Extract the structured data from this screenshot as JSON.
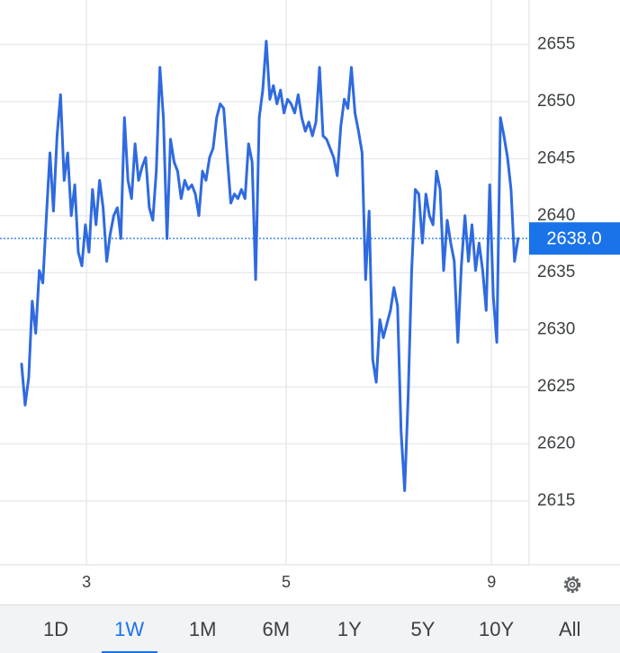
{
  "chart_data": {
    "type": "line",
    "series": [
      {
        "color": "#2f6ae0",
        "values": [
          2627.0,
          2623.4,
          2625.8,
          2632.5,
          2629.7,
          2635.2,
          2634.1,
          2640.0,
          2645.5,
          2640.4,
          2647.0,
          2650.6,
          2643.1,
          2645.5,
          2640.0,
          2642.7,
          2636.8,
          2635.6,
          2639.2,
          2636.8,
          2642.3,
          2639.2,
          2643.1,
          2640.7,
          2636.0,
          2638.4,
          2640.0,
          2640.7,
          2638.0,
          2648.6,
          2643.1,
          2641.5,
          2646.3,
          2643.1,
          2644.3,
          2645.1,
          2640.7,
          2639.6,
          2643.9,
          2653.0,
          2648.6,
          2638.0,
          2646.7,
          2644.7,
          2643.9,
          2641.5,
          2643.1,
          2642.3,
          2642.7,
          2641.9,
          2640.0,
          2643.9,
          2643.1,
          2645.1,
          2645.9,
          2648.6,
          2649.8,
          2649.4,
          2645.1,
          2641.1,
          2641.9,
          2641.5,
          2642.3,
          2641.5,
          2646.3,
          2644.7,
          2634.4,
          2648.6,
          2651.0,
          2655.3,
          2650.2,
          2651.4,
          2649.8,
          2651.0,
          2649.0,
          2650.2,
          2649.8,
          2649.0,
          2650.6,
          2648.6,
          2647.4,
          2648.2,
          2647.0,
          2648.2,
          2653.0,
          2647.0,
          2646.7,
          2645.9,
          2645.1,
          2643.5,
          2647.8,
          2650.2,
          2649.4,
          2653.0,
          2649.0,
          2647.4,
          2645.5,
          2634.4,
          2640.4,
          2627.4,
          2625.4,
          2630.9,
          2629.3,
          2630.5,
          2631.7,
          2633.7,
          2632.1,
          2621.1,
          2615.9,
          2624.2,
          2635.2,
          2642.3,
          2641.9,
          2637.6,
          2641.9,
          2640.0,
          2639.2,
          2643.9,
          2642.3,
          2635.2,
          2639.6,
          2637.6,
          2636.0,
          2628.9,
          2635.6,
          2640.0,
          2636.0,
          2639.2,
          2635.2,
          2637.6,
          2635.2,
          2631.7,
          2642.7,
          2632.9,
          2628.9,
          2648.6,
          2647.0,
          2645.1,
          2642.3,
          2636.0,
          2638.0
        ]
      }
    ],
    "xlim": [
      -0.5,
      143.1
    ],
    "xticks": [
      {
        "value": 18.3,
        "label": "3"
      },
      {
        "value": 74.6,
        "label": "5"
      },
      {
        "value": 132.5,
        "label": "9"
      }
    ],
    "ylim": [
      2609.4,
      2658.9
    ],
    "yticks": [
      2615,
      2620,
      2625,
      2630,
      2635,
      2640,
      2645,
      2650,
      2655
    ],
    "grid": true,
    "current_price": {
      "value": 2638.0,
      "label": "2638.0"
    }
  },
  "range_buttons": {
    "labels": [
      "1D",
      "1W",
      "1M",
      "6M",
      "1Y",
      "5Y",
      "10Y",
      "All"
    ],
    "selected": 1
  }
}
